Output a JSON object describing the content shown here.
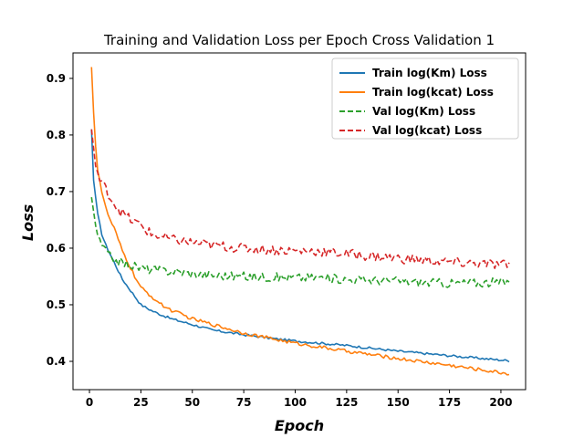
{
  "chart_data": {
    "type": "line",
    "title": "Training and Validation Loss per Epoch Cross Validation 1",
    "xlabel": "Epoch",
    "ylabel": "Loss",
    "xlim": [
      -8,
      212
    ],
    "ylim": [
      0.35,
      0.945
    ],
    "xticks": [
      0,
      25,
      50,
      75,
      100,
      125,
      150,
      175,
      200
    ],
    "yticks": [
      0.4,
      0.5,
      0.6,
      0.7,
      0.8,
      0.9
    ],
    "grid": false,
    "legend_position": "top-right",
    "series": [
      {
        "name": "Train log(Km) Loss",
        "color": "#1f77b4",
        "style": "solid",
        "x": [
          1,
          2,
          4,
          6,
          8,
          10,
          12,
          14,
          16,
          18,
          20,
          25,
          30,
          35,
          40,
          50,
          60,
          75,
          90,
          100,
          125,
          150,
          175,
          204
        ],
        "y": [
          0.81,
          0.72,
          0.66,
          0.625,
          0.605,
          0.59,
          0.575,
          0.56,
          0.545,
          0.535,
          0.525,
          0.5,
          0.49,
          0.482,
          0.475,
          0.465,
          0.455,
          0.447,
          0.44,
          0.436,
          0.428,
          0.418,
          0.41,
          0.401
        ]
      },
      {
        "name": "Train log(kcat) Loss",
        "color": "#ff7f0e",
        "style": "solid",
        "x": [
          1,
          2,
          3,
          4,
          6,
          8,
          10,
          12,
          14,
          16,
          18,
          20,
          22,
          25,
          30,
          35,
          40,
          50,
          60,
          75,
          100,
          125,
          150,
          175,
          204
        ],
        "y": [
          0.92,
          0.84,
          0.78,
          0.74,
          0.7,
          0.67,
          0.65,
          0.635,
          0.615,
          0.595,
          0.58,
          0.565,
          0.55,
          0.53,
          0.515,
          0.5,
          0.49,
          0.475,
          0.465,
          0.45,
          0.432,
          0.418,
          0.405,
          0.393,
          0.378
        ]
      },
      {
        "name": "Val log(Km) Loss",
        "color": "#2ca02c",
        "style": "dashed",
        "x": [
          1,
          3,
          5,
          8,
          10,
          15,
          20,
          25,
          35,
          40,
          50,
          60,
          75,
          100,
          110,
          125,
          150,
          160,
          175,
          204
        ],
        "y": [
          0.69,
          0.64,
          0.61,
          0.595,
          0.585,
          0.575,
          0.57,
          0.565,
          0.56,
          0.56,
          0.555,
          0.552,
          0.55,
          0.548,
          0.548,
          0.545,
          0.542,
          0.54,
          0.538,
          0.54
        ]
      },
      {
        "name": "Val log(kcat) Loss",
        "color": "#d62728",
        "style": "dashed",
        "x": [
          1,
          3,
          5,
          8,
          10,
          15,
          20,
          25,
          30,
          40,
          50,
          60,
          75,
          100,
          110,
          125,
          150,
          175,
          204
        ],
        "y": [
          0.81,
          0.745,
          0.72,
          0.705,
          0.69,
          0.665,
          0.65,
          0.64,
          0.625,
          0.615,
          0.61,
          0.605,
          0.6,
          0.595,
          0.595,
          0.59,
          0.582,
          0.575,
          0.57
        ]
      }
    ]
  }
}
